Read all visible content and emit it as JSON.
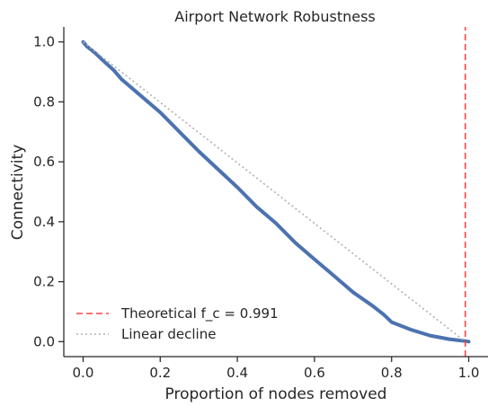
{
  "chart_data": {
    "type": "line",
    "title": "Airport Network Robustness",
    "xlabel": "Proportion of nodes removed",
    "ylabel": "Connectivity",
    "xlim": [
      -0.05,
      1.05
    ],
    "ylim": [
      -0.05,
      1.05
    ],
    "x_ticks": [
      "0.0",
      "0.2",
      "0.4",
      "0.6",
      "0.8",
      "1.0"
    ],
    "y_ticks": [
      "0.0",
      "0.2",
      "0.4",
      "0.6",
      "0.8",
      "1.0"
    ],
    "grid": false,
    "legend_placement": "lower-left",
    "series": [
      {
        "color": "#4c72b0",
        "style": "thick-solid",
        "x": [
          0.0,
          0.01,
          0.03,
          0.05,
          0.08,
          0.1,
          0.15,
          0.2,
          0.25,
          0.3,
          0.35,
          0.4,
          0.45,
          0.5,
          0.55,
          0.6,
          0.65,
          0.7,
          0.75,
          0.78,
          0.8,
          0.85,
          0.9,
          0.95,
          0.99,
          1.0
        ],
        "y": [
          1.0,
          0.985,
          0.965,
          0.94,
          0.905,
          0.875,
          0.82,
          0.765,
          0.7,
          0.635,
          0.575,
          0.515,
          0.45,
          0.395,
          0.33,
          0.275,
          0.22,
          0.165,
          0.12,
          0.09,
          0.065,
          0.04,
          0.02,
          0.008,
          0.002,
          0.0
        ]
      },
      {
        "name": "Linear decline",
        "color": "#b0b0b0",
        "style": "dotted",
        "x": [
          0.0,
          0.991
        ],
        "y": [
          1.0,
          0.0
        ]
      },
      {
        "name": "Theoretical f_c = 0.991",
        "color": "#ff4444",
        "style": "dashed-vertical",
        "x": [
          0.991,
          0.991
        ],
        "y": [
          -0.05,
          1.05
        ]
      }
    ],
    "legend": [
      {
        "label": "Theoretical f_c = 0.991",
        "color": "#ff4444",
        "style": "dashed"
      },
      {
        "label": "Linear decline",
        "color": "#b0b0b0",
        "style": "dotted"
      }
    ]
  }
}
